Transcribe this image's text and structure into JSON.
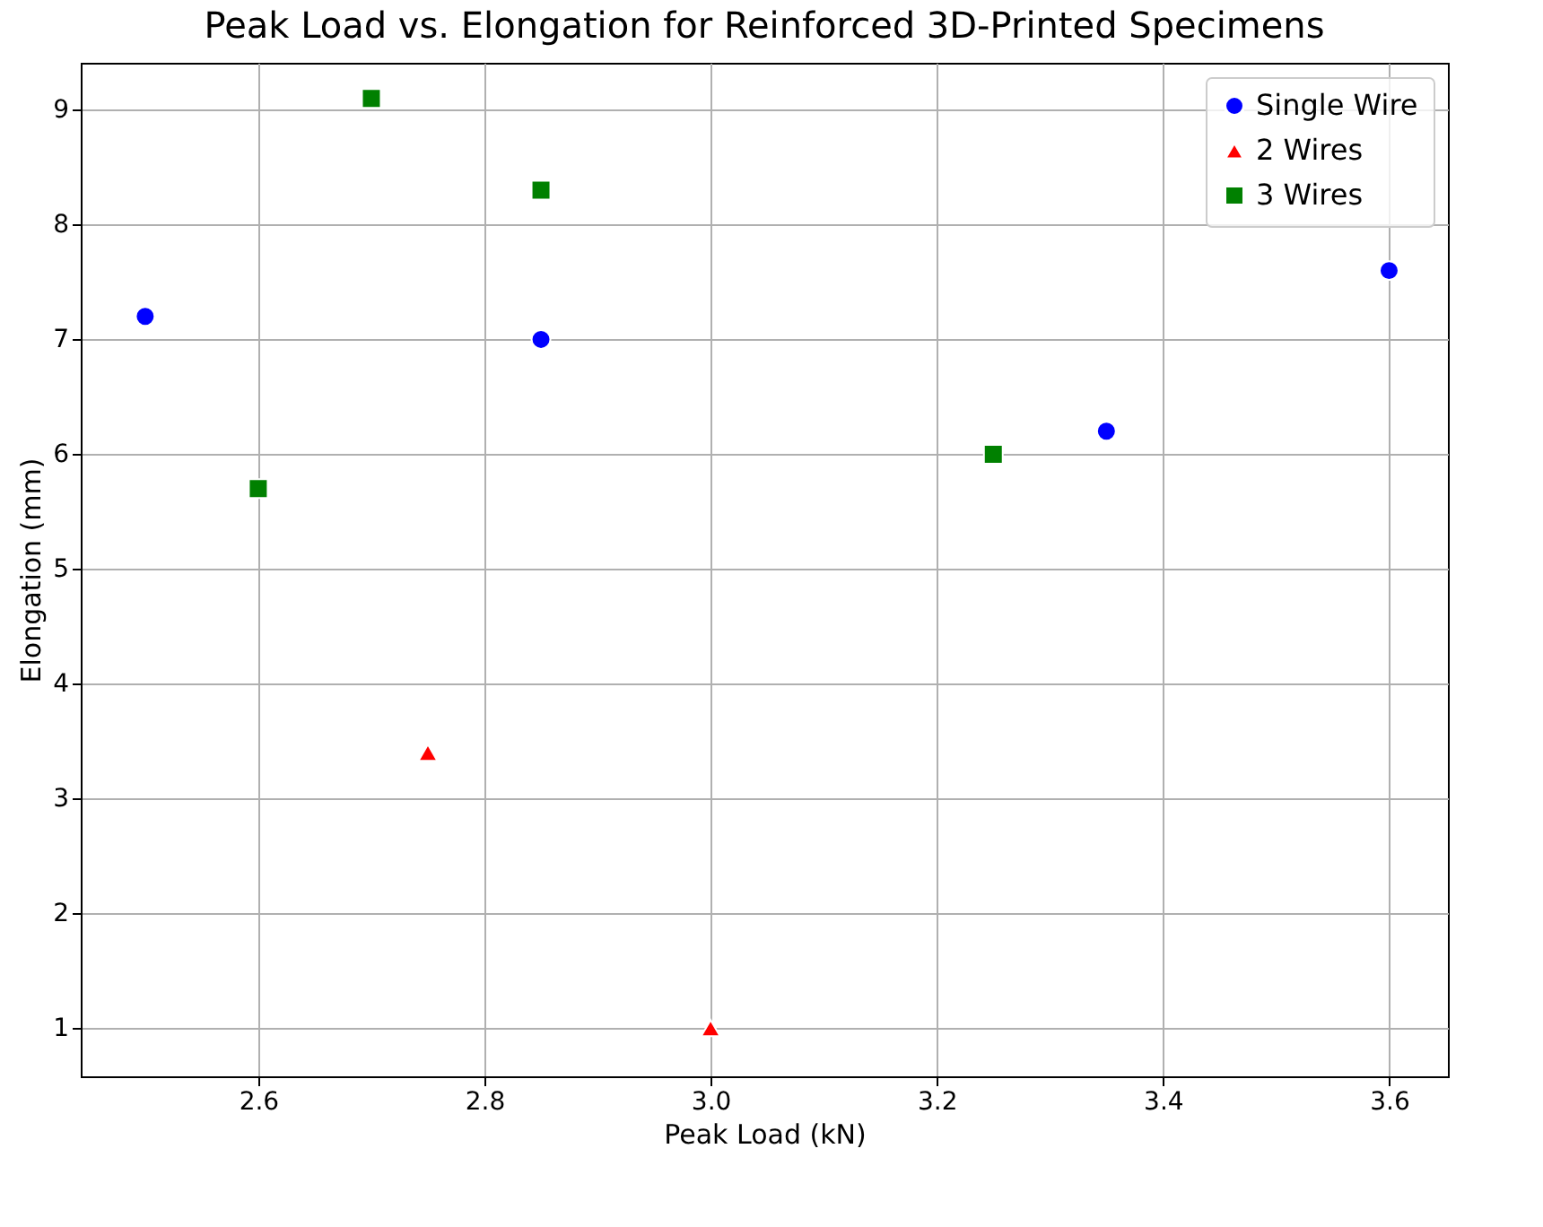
{
  "chart_data": {
    "type": "scatter",
    "title": "Peak Load vs. Elongation for Reinforced 3D-Printed Specimens",
    "xlabel": "Peak Load (kN)",
    "ylabel": "Elongation (mm)",
    "series": [
      {
        "name": "Single Wire",
        "color": "#0000ff",
        "marker": "circle",
        "x": [
          2.5,
          2.85,
          3.35,
          3.6
        ],
        "values": [
          7.2,
          7.0,
          6.2,
          7.6
        ]
      },
      {
        "name": "2 Wires",
        "color": "#ff0000",
        "marker": "triangle",
        "x": [
          2.75,
          3.0
        ],
        "values": [
          3.4,
          1.0
        ]
      },
      {
        "name": "3 Wires",
        "color": "#008000",
        "marker": "square",
        "x": [
          2.6,
          2.7,
          2.85,
          3.25
        ],
        "values": [
          5.7,
          9.1,
          8.3,
          6.0
        ]
      }
    ],
    "xlim": [
      2.443,
      3.652
    ],
    "xticks": [
      2.6,
      2.8,
      {
        "value": 3,
        "label": "3.0"
      },
      3.2,
      3.4,
      3.6
    ],
    "ylim": [
      0.58,
      9.41
    ],
    "yticks": [
      1,
      2,
      3,
      4,
      5,
      6,
      7,
      8,
      9
    ],
    "grid": true,
    "legend": "top right"
  }
}
